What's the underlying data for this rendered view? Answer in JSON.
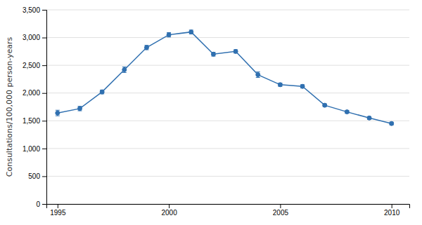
{
  "chart_data": {
    "type": "line",
    "ylabel": "Consultations/100,000 person-years",
    "x": [
      1995,
      1996,
      1997,
      1998,
      1999,
      2000,
      2001,
      2002,
      2003,
      2004,
      2005,
      2006,
      2007,
      2008,
      2009,
      2010
    ],
    "values": [
      1640,
      1720,
      2020,
      2420,
      2820,
      3050,
      3100,
      2700,
      2750,
      2330,
      2150,
      2120,
      1780,
      1660,
      1550,
      1450
    ],
    "ci_low": [
      50,
      40,
      35,
      50,
      40,
      40,
      35,
      35,
      30,
      50,
      30,
      30,
      25,
      25,
      25,
      25
    ],
    "ci_high": [
      50,
      40,
      35,
      50,
      40,
      40,
      35,
      35,
      30,
      50,
      30,
      30,
      25,
      25,
      25,
      25
    ],
    "color": "#3070b0",
    "marker": "circle",
    "ylim": [
      0,
      3500
    ],
    "yticks": [
      0,
      500,
      {
        "value": 1000,
        "label": "1,000"
      },
      {
        "value": 1500,
        "label": "1,500"
      },
      {
        "value": 2000,
        "label": "2,000"
      },
      {
        "value": 2500,
        "label": "2,500"
      },
      {
        "value": 3000,
        "label": "3,000"
      },
      {
        "value": 3500,
        "label": "3,500"
      }
    ],
    "xlim": [
      1994.5,
      2010.8
    ],
    "xticks": [
      1995,
      2000,
      2005,
      2010
    ],
    "grid": true
  }
}
